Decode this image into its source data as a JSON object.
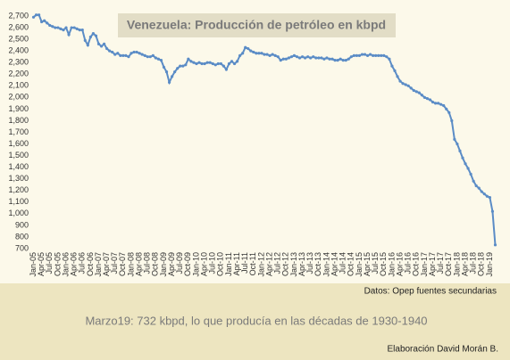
{
  "chart_data": {
    "type": "line",
    "title": "Venezuela: Producción de petróleo en kbpd",
    "source": "Datos: Opep fuentes secundarias",
    "annotation": "Marzo19: 732 kbpd, lo que producía en las décadas de 1930-1940",
    "credit": "Elaboración David Morán B.",
    "color": "#5b8cc6",
    "categories": [
      "Jan-05",
      null,
      null,
      "Apr-05",
      null,
      null,
      "Jul-05",
      null,
      null,
      "Oct-05",
      null,
      null,
      "Jan-06",
      null,
      null,
      "Apr-06",
      null,
      null,
      "Jul-06",
      null,
      null,
      "Oct-06",
      null,
      null,
      "Jan-07",
      null,
      null,
      "Apr-07",
      null,
      null,
      "Jul-07",
      null,
      null,
      "Oct-07",
      null,
      null,
      "Jan-08",
      null,
      null,
      "Apr-08",
      null,
      null,
      "Jul-08",
      null,
      null,
      "Oct-08",
      null,
      null,
      "Jan-09",
      null,
      null,
      "Apr-09",
      null,
      null,
      "Jul-09",
      null,
      null,
      "Oct-09",
      null,
      null,
      "Jan-10",
      null,
      null,
      "Apr-10",
      null,
      null,
      "Jul-10",
      null,
      null,
      "Oct-10",
      null,
      null,
      "Jan-11",
      null,
      null,
      "Apr-11",
      null,
      null,
      "Jul-11",
      null,
      null,
      "Oct-11",
      null,
      null,
      "Jan-12",
      null,
      null,
      "Apr-12",
      null,
      null,
      "Jul-12",
      null,
      null,
      "Oct-12",
      null,
      null,
      "Jan-13",
      null,
      null,
      "Apr-13",
      null,
      null,
      "Jul-13",
      null,
      null,
      "Oct-13",
      null,
      null,
      "Jan-14",
      null,
      null,
      "Apr-14",
      null,
      null,
      "Jul-14",
      null,
      null,
      "Oct-14",
      null,
      null,
      "Jan-15",
      null,
      null,
      "Apr-15",
      null,
      null,
      "Jul-15",
      null,
      null,
      "Oct-15",
      null,
      null,
      "Jan-16",
      null,
      null,
      "Apr-16",
      null,
      null,
      "Jul-16",
      null,
      null,
      "Oct-16",
      null,
      null,
      "Jan-17",
      null,
      null,
      "Apr-17",
      null,
      null,
      "Jul-17",
      null,
      null,
      "Oct-17",
      null,
      null,
      "Jan-18",
      null,
      null,
      "Apr-18",
      null,
      null,
      "Jul-18",
      null,
      null,
      "Oct-18",
      null,
      null,
      "Jan-19",
      null,
      null
    ],
    "values": [
      2690,
      2710,
      2710,
      2650,
      2660,
      2640,
      2620,
      2610,
      2600,
      2600,
      2590,
      2580,
      2600,
      2540,
      2600,
      2600,
      2590,
      2580,
      2580,
      2490,
      2450,
      2520,
      2550,
      2530,
      2460,
      2440,
      2460,
      2420,
      2400,
      2390,
      2370,
      2380,
      2360,
      2360,
      2360,
      2350,
      2380,
      2390,
      2390,
      2380,
      2370,
      2360,
      2350,
      2350,
      2360,
      2340,
      2330,
      2320,
      2260,
      2220,
      2130,
      2180,
      2220,
      2250,
      2270,
      2270,
      2280,
      2330,
      2310,
      2300,
      2290,
      2300,
      2290,
      2290,
      2300,
      2300,
      2290,
      2280,
      2290,
      2290,
      2270,
      2240,
      2290,
      2310,
      2290,
      2310,
      2360,
      2380,
      2430,
      2420,
      2400,
      2390,
      2380,
      2380,
      2380,
      2370,
      2370,
      2360,
      2370,
      2360,
      2350,
      2320,
      2330,
      2330,
      2340,
      2350,
      2360,
      2350,
      2340,
      2350,
      2340,
      2350,
      2340,
      2350,
      2340,
      2340,
      2340,
      2330,
      2340,
      2330,
      2330,
      2320,
      2320,
      2330,
      2320,
      2320,
      2330,
      2350,
      2360,
      2360,
      2360,
      2370,
      2370,
      2360,
      2370,
      2360,
      2360,
      2360,
      2360,
      2360,
      2350,
      2330,
      2270,
      2230,
      2180,
      2140,
      2120,
      2110,
      2100,
      2080,
      2060,
      2050,
      2040,
      2020,
      2000,
      1990,
      1980,
      1960,
      1950,
      1950,
      1940,
      1930,
      1900,
      1870,
      1800,
      1640,
      1600,
      1540,
      1480,
      1430,
      1390,
      1340,
      1280,
      1240,
      1220,
      1190,
      1170,
      1150,
      1140,
      1020,
      732
    ],
    "ylim": [
      700,
      2700
    ],
    "yticks": [
      {
        "value": 700,
        "label": "700"
      },
      {
        "value": 800,
        "label": "800"
      },
      {
        "value": 900,
        "label": "900"
      },
      {
        "value": 1000,
        "label": "1,000"
      },
      {
        "value": 1100,
        "label": "1,100"
      },
      {
        "value": 1200,
        "label": "1,200"
      },
      {
        "value": 1300,
        "label": "1,300"
      },
      {
        "value": 1400,
        "label": "1,400"
      },
      {
        "value": 1500,
        "label": "1,500"
      },
      {
        "value": 1600,
        "label": "1,600"
      },
      {
        "value": 1700,
        "label": "1,700"
      },
      {
        "value": 1800,
        "label": "1,800"
      },
      {
        "value": 1900,
        "label": "1,900"
      },
      {
        "value": 2000,
        "label": "2,000"
      },
      {
        "value": 2100,
        "label": "2,100"
      },
      {
        "value": 2200,
        "label": "2,200"
      },
      {
        "value": 2300,
        "label": "2,300"
      },
      {
        "value": 2400,
        "label": "2,400"
      },
      {
        "value": 2500,
        "label": "2,500"
      },
      {
        "value": 2600,
        "label": "2,600"
      },
      {
        "value": 2700,
        "label": "2,700"
      }
    ],
    "grid": false
  }
}
